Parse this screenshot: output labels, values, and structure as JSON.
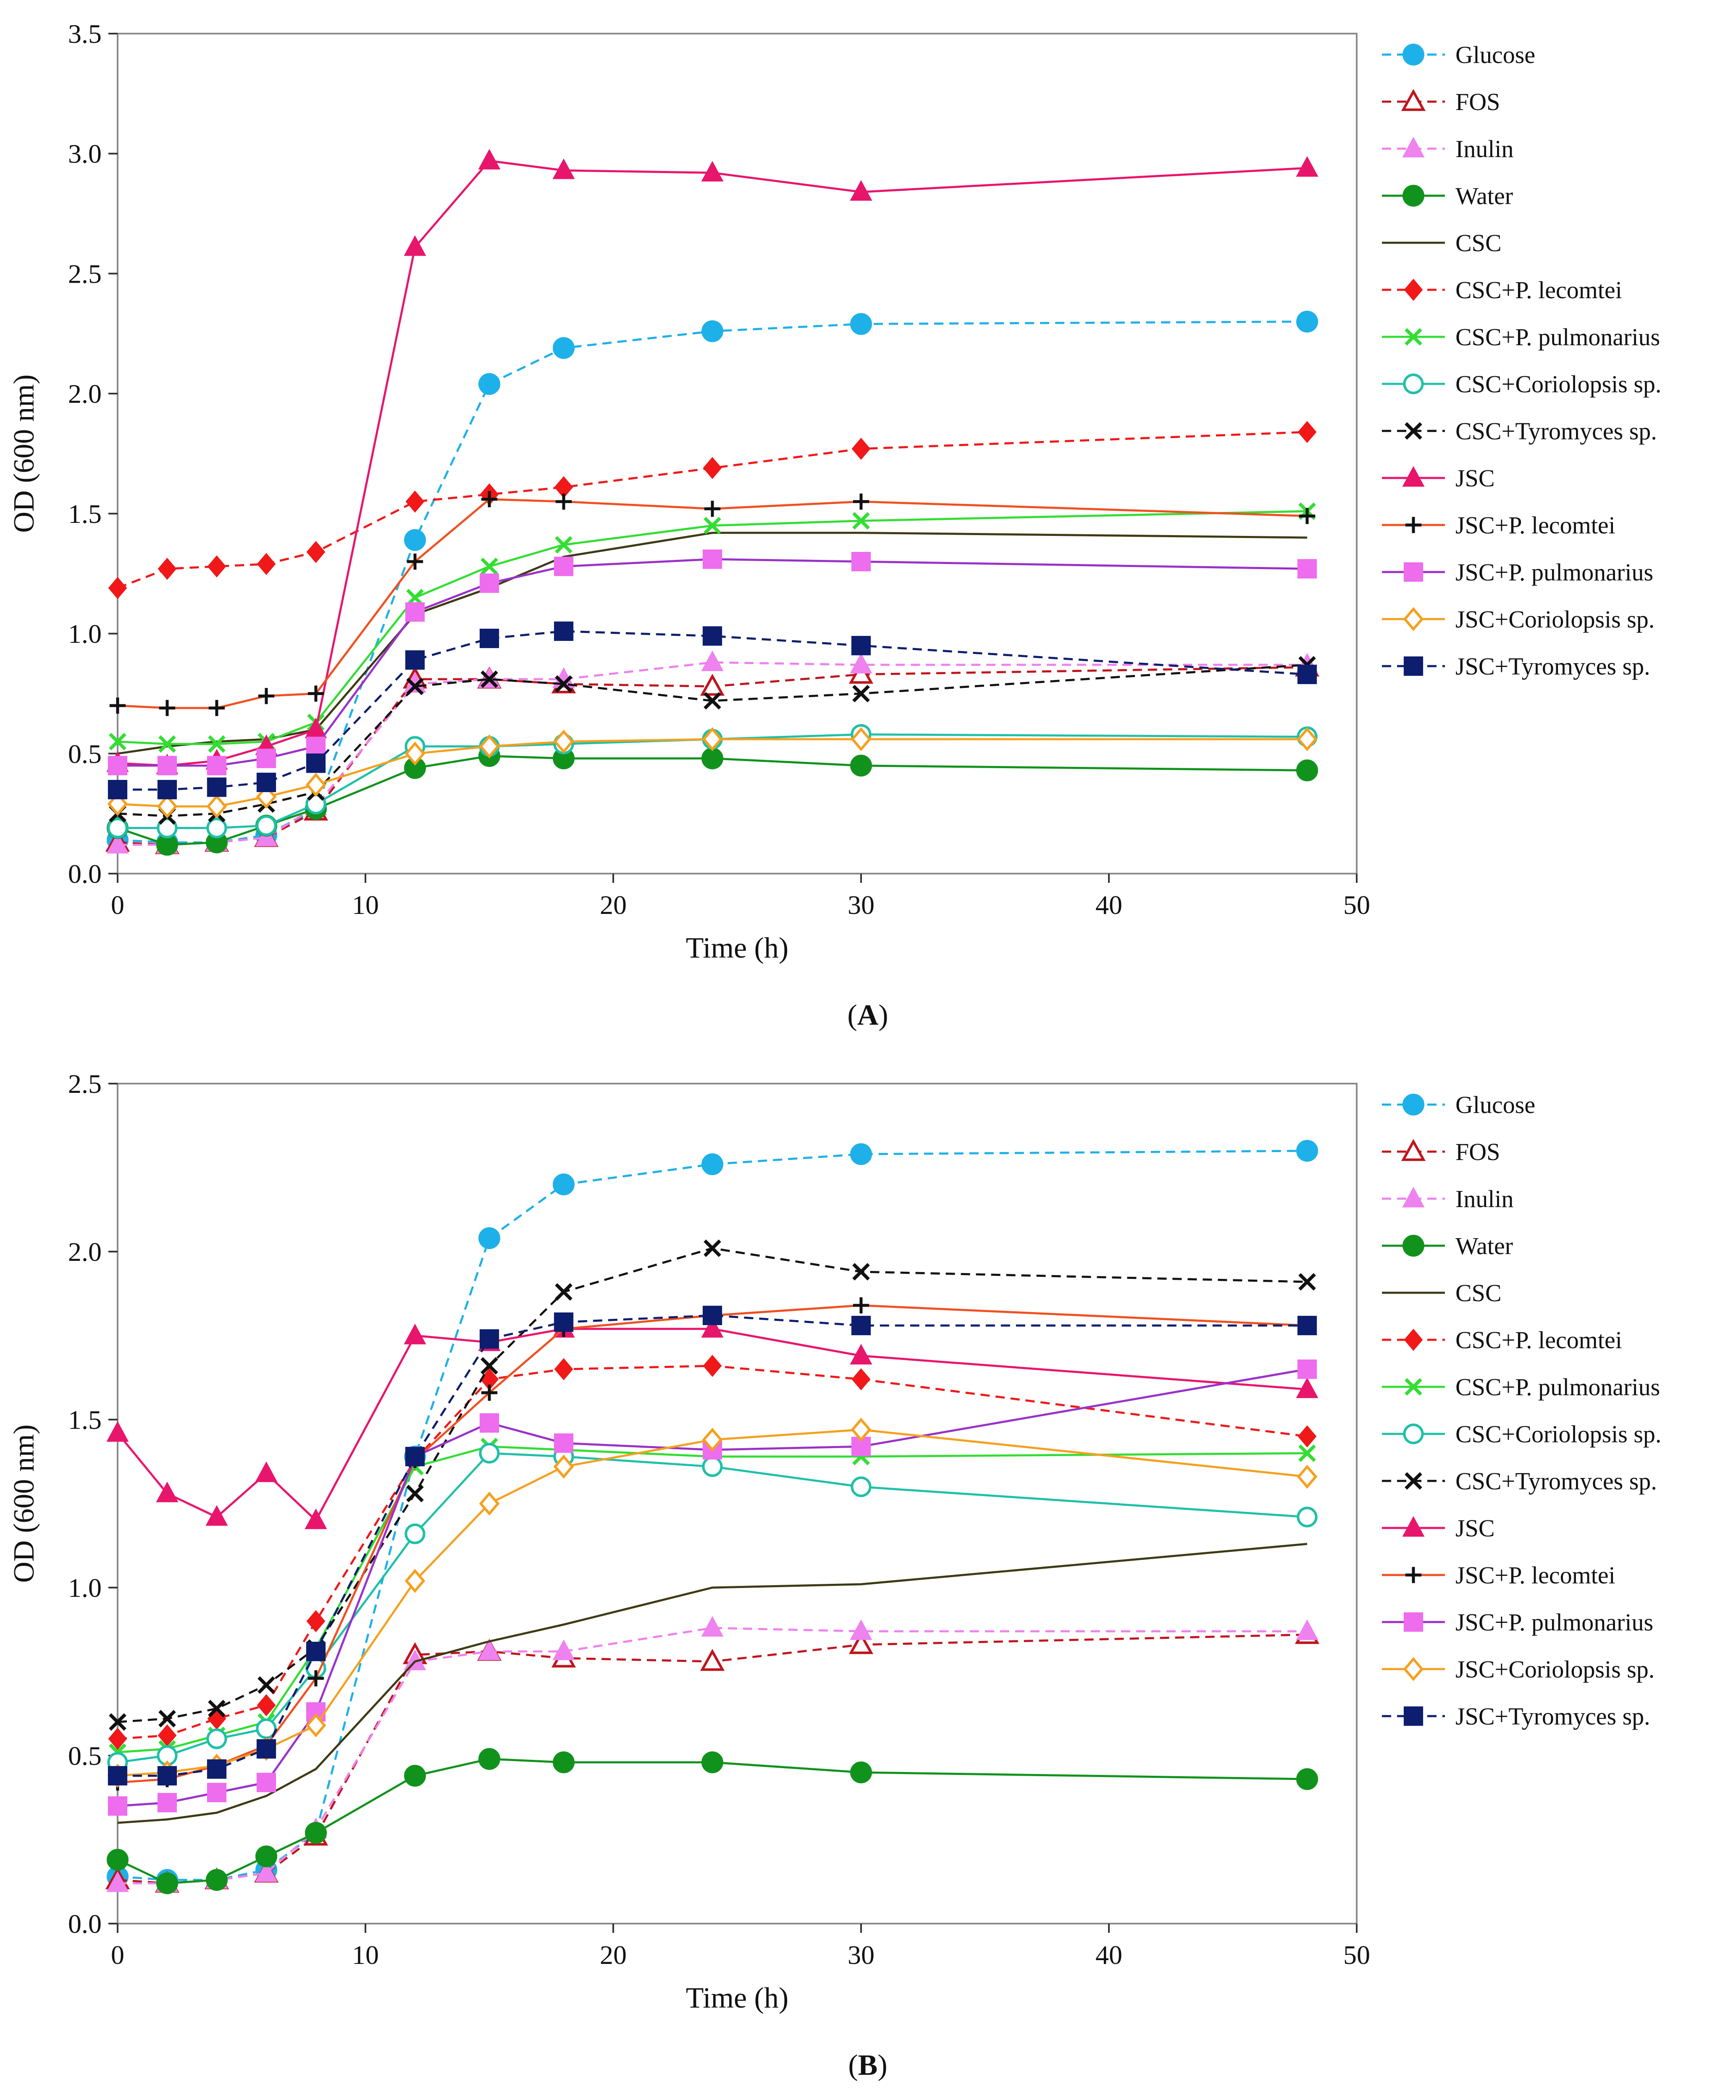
{
  "figure": {
    "panel_labels": [
      "A",
      "B"
    ]
  },
  "series_styles": [
    {
      "name": "Glucose",
      "color": "#1eb0e8",
      "marker": "circle-filled",
      "dash": true
    },
    {
      "name": "FOS",
      "color": "#c0141c",
      "marker": "triangle-open",
      "dash": true
    },
    {
      "name": "Inulin",
      "color": "#ee82ee",
      "marker": "triangle-filled",
      "dash": true
    },
    {
      "name": "Water",
      "color": "#11921c",
      "marker": "circle-filled",
      "dash": false
    },
    {
      "name": "CSC",
      "color": "#3e3a14",
      "marker": "none",
      "dash": false
    },
    {
      "name": "CSC+P. lecomtei",
      "color": "#f01818",
      "marker": "diamond-filled",
      "dash": true
    },
    {
      "name": "CSC+P. pulmonarius",
      "color": "#33dd33",
      "marker": "x",
      "dash": false
    },
    {
      "name": "CSC+Coriolopsis sp.",
      "color": "#1ec0a8",
      "marker": "circle-open",
      "dash": false
    },
    {
      "name": "CSC+Tyromyces sp.",
      "color": "#111111",
      "marker": "x",
      "dash": true
    },
    {
      "name": "JSC",
      "color": "#e8156c",
      "marker": "triangle-filled",
      "dash": false
    },
    {
      "name": "JSC+P. lecomtei",
      "color": "#f05020",
      "marker": "plus",
      "dash": false
    },
    {
      "name": "JSC+P. pulmonarius",
      "color": "#9a32c8",
      "marker": "square-pink",
      "dash": false
    },
    {
      "name": "JSC+Coriolopsis sp.",
      "color": "#f5a01e",
      "marker": "diamond-open",
      "dash": false
    },
    {
      "name": "JSC+Tyromyces sp.",
      "color": "#0d1e6e",
      "marker": "square-navy",
      "dash": true
    }
  ],
  "chart_data": [
    {
      "panel": "A",
      "type": "line",
      "xlabel": "Time (h)",
      "ylabel": "OD (600 nm)",
      "xlim": [
        0,
        50
      ],
      "ylim": [
        0,
        3.5
      ],
      "xticks": [
        "0",
        "10",
        "20",
        "30",
        "40",
        "50"
      ],
      "yticks": [
        "0.0",
        "0.5",
        "1.0",
        "1.5",
        "2.0",
        "2.5",
        "3.0",
        "3.5"
      ],
      "legend": [
        "Glucose",
        "FOS",
        "Inulin",
        "Water",
        "CSC",
        "CSC+P. lecomtei",
        "CSC+P. pulmonarius",
        "CSC+Coriolopsis sp.",
        "CSC+Tyromyces sp.",
        "JSC",
        "JSC+P. lecomtei",
        "JSC+P. pulmonarius",
        "JSC+Coriolopsis sp.",
        "JSC+Tyromyces sp."
      ],
      "x": [
        0,
        2,
        4,
        6,
        8,
        12,
        15,
        18,
        24,
        30,
        48
      ],
      "series": [
        {
          "name": "Glucose",
          "values": [
            0.14,
            0.13,
            0.13,
            0.16,
            0.27,
            1.39,
            2.04,
            2.19,
            2.26,
            2.29,
            2.3
          ]
        },
        {
          "name": "FOS",
          "values": [
            0.13,
            0.12,
            0.13,
            0.15,
            0.26,
            0.81,
            0.81,
            0.79,
            0.78,
            0.83,
            0.86
          ]
        },
        {
          "name": "Inulin",
          "values": [
            0.12,
            0.12,
            0.13,
            0.15,
            0.28,
            0.79,
            0.81,
            0.81,
            0.88,
            0.87,
            0.87
          ]
        },
        {
          "name": "Water",
          "values": [
            0.19,
            0.12,
            0.13,
            0.2,
            0.27,
            0.44,
            0.49,
            0.48,
            0.48,
            0.45,
            0.43
          ]
        },
        {
          "name": "CSC",
          "values": [
            0.5,
            0.53,
            0.55,
            0.56,
            0.6,
            1.08,
            1.19,
            1.32,
            1.42,
            1.42,
            1.4
          ]
        },
        {
          "name": "CSC+P. lecomtei",
          "values": [
            1.19,
            1.27,
            1.28,
            1.29,
            1.34,
            1.55,
            1.58,
            1.61,
            1.69,
            1.77,
            1.84
          ]
        },
        {
          "name": "CSC+P. pulmonarius",
          "values": [
            0.55,
            0.54,
            0.54,
            0.55,
            0.63,
            1.15,
            1.28,
            1.37,
            1.45,
            1.47,
            1.51
          ]
        },
        {
          "name": "CSC+Coriolopsis sp.",
          "values": [
            0.19,
            0.19,
            0.19,
            0.2,
            0.29,
            0.53,
            0.53,
            0.54,
            0.56,
            0.58,
            0.57
          ]
        },
        {
          "name": "CSC+Tyromyces sp.",
          "values": [
            0.25,
            0.24,
            0.25,
            0.29,
            0.34,
            0.78,
            0.81,
            0.79,
            0.72,
            0.75,
            0.87
          ]
        },
        {
          "name": "JSC",
          "values": [
            0.46,
            0.45,
            0.47,
            0.53,
            0.6,
            2.61,
            2.97,
            2.93,
            2.92,
            2.84,
            2.94
          ]
        },
        {
          "name": "JSC+P. lecomtei",
          "values": [
            0.7,
            0.69,
            0.69,
            0.74,
            0.75,
            1.3,
            1.56,
            1.55,
            1.52,
            1.55,
            1.49
          ]
        },
        {
          "name": "JSC+P. pulmonarius",
          "values": [
            0.45,
            0.45,
            0.45,
            0.48,
            0.53,
            1.09,
            1.21,
            1.28,
            1.31,
            1.3,
            1.27
          ]
        },
        {
          "name": "JSC+Coriolopsis sp.",
          "values": [
            0.29,
            0.28,
            0.28,
            0.32,
            0.37,
            0.5,
            0.53,
            0.55,
            0.56,
            0.56,
            0.56
          ]
        },
        {
          "name": "JSC+Tyromyces sp.",
          "values": [
            0.35,
            0.35,
            0.36,
            0.38,
            0.46,
            0.89,
            0.98,
            1.01,
            0.99,
            0.95,
            0.83
          ]
        }
      ]
    },
    {
      "panel": "B",
      "type": "line",
      "xlabel": "Time (h)",
      "ylabel": "OD (600 nm)",
      "xlim": [
        0,
        50
      ],
      "ylim": [
        0,
        2.5
      ],
      "xticks": [
        "0",
        "10",
        "20",
        "30",
        "40",
        "50"
      ],
      "yticks": [
        "0.0",
        "0.5",
        "1.0",
        "1.5",
        "2.0",
        "2.5"
      ],
      "legend": [
        "Glucose",
        "FOS",
        "Inulin",
        "Water",
        "CSC",
        "CSC+P. lecomtei",
        "CSC+P. pulmonarius",
        "CSC+Coriolopsis sp.",
        "CSC+Tyromyces sp.",
        "JSC",
        "JSC+P. lecomtei",
        "JSC+P. pulmonarius",
        "JSC+Coriolopsis sp.",
        "JSC+Tyromyces sp."
      ],
      "x": [
        0,
        2,
        4,
        6,
        8,
        12,
        15,
        18,
        24,
        30,
        48
      ],
      "series": [
        {
          "name": "Glucose",
          "values": [
            0.14,
            0.13,
            0.13,
            0.16,
            0.27,
            1.39,
            2.04,
            2.2,
            2.26,
            2.29,
            2.3
          ]
        },
        {
          "name": "FOS",
          "values": [
            0.13,
            0.12,
            0.13,
            0.15,
            0.26,
            0.8,
            0.81,
            0.79,
            0.78,
            0.83,
            0.86
          ]
        },
        {
          "name": "Inulin",
          "values": [
            0.12,
            0.12,
            0.13,
            0.15,
            0.28,
            0.78,
            0.81,
            0.81,
            0.88,
            0.87,
            0.87
          ]
        },
        {
          "name": "Water",
          "values": [
            0.19,
            0.12,
            0.13,
            0.2,
            0.27,
            0.44,
            0.49,
            0.48,
            0.48,
            0.45,
            0.43
          ]
        },
        {
          "name": "CSC",
          "values": [
            0.3,
            0.31,
            0.33,
            0.38,
            0.46,
            0.78,
            0.84,
            0.89,
            1.0,
            1.01,
            1.13
          ]
        },
        {
          "name": "CSC+P. lecomtei",
          "values": [
            0.55,
            0.56,
            0.61,
            0.65,
            0.9,
            1.38,
            1.62,
            1.65,
            1.66,
            1.62,
            1.45
          ]
        },
        {
          "name": "CSC+P. pulmonarius",
          "values": [
            0.51,
            0.52,
            0.56,
            0.6,
            0.82,
            1.36,
            1.42,
            1.41,
            1.39,
            1.39,
            1.4
          ]
        },
        {
          "name": "CSC+Coriolopsis sp.",
          "values": [
            0.48,
            0.5,
            0.55,
            0.58,
            0.76,
            1.16,
            1.4,
            1.39,
            1.36,
            1.3,
            1.21
          ]
        },
        {
          "name": "CSC+Tyromyces sp.",
          "values": [
            0.6,
            0.61,
            0.64,
            0.71,
            0.82,
            1.28,
            1.66,
            1.88,
            2.01,
            1.94,
            1.91
          ]
        },
        {
          "name": "JSC",
          "values": [
            1.46,
            1.28,
            1.21,
            1.34,
            1.2,
            1.75,
            1.73,
            1.77,
            1.77,
            1.69,
            1.59
          ]
        },
        {
          "name": "JSC+P. lecomtei",
          "values": [
            0.42,
            0.43,
            0.47,
            0.53,
            0.73,
            1.38,
            1.58,
            1.77,
            1.81,
            1.84,
            1.78
          ]
        },
        {
          "name": "JSC+P. pulmonarius",
          "values": [
            0.35,
            0.36,
            0.39,
            0.42,
            0.63,
            1.39,
            1.49,
            1.43,
            1.41,
            1.42,
            1.65
          ]
        },
        {
          "name": "JSC+Coriolopsis sp.",
          "values": [
            0.44,
            0.45,
            0.47,
            0.52,
            0.59,
            1.02,
            1.25,
            1.36,
            1.44,
            1.47,
            1.33
          ]
        },
        {
          "name": "JSC+Tyromyces sp.",
          "values": [
            0.44,
            0.44,
            0.46,
            0.52,
            0.81,
            1.39,
            1.74,
            1.79,
            1.81,
            1.78,
            1.78
          ]
        }
      ]
    }
  ]
}
